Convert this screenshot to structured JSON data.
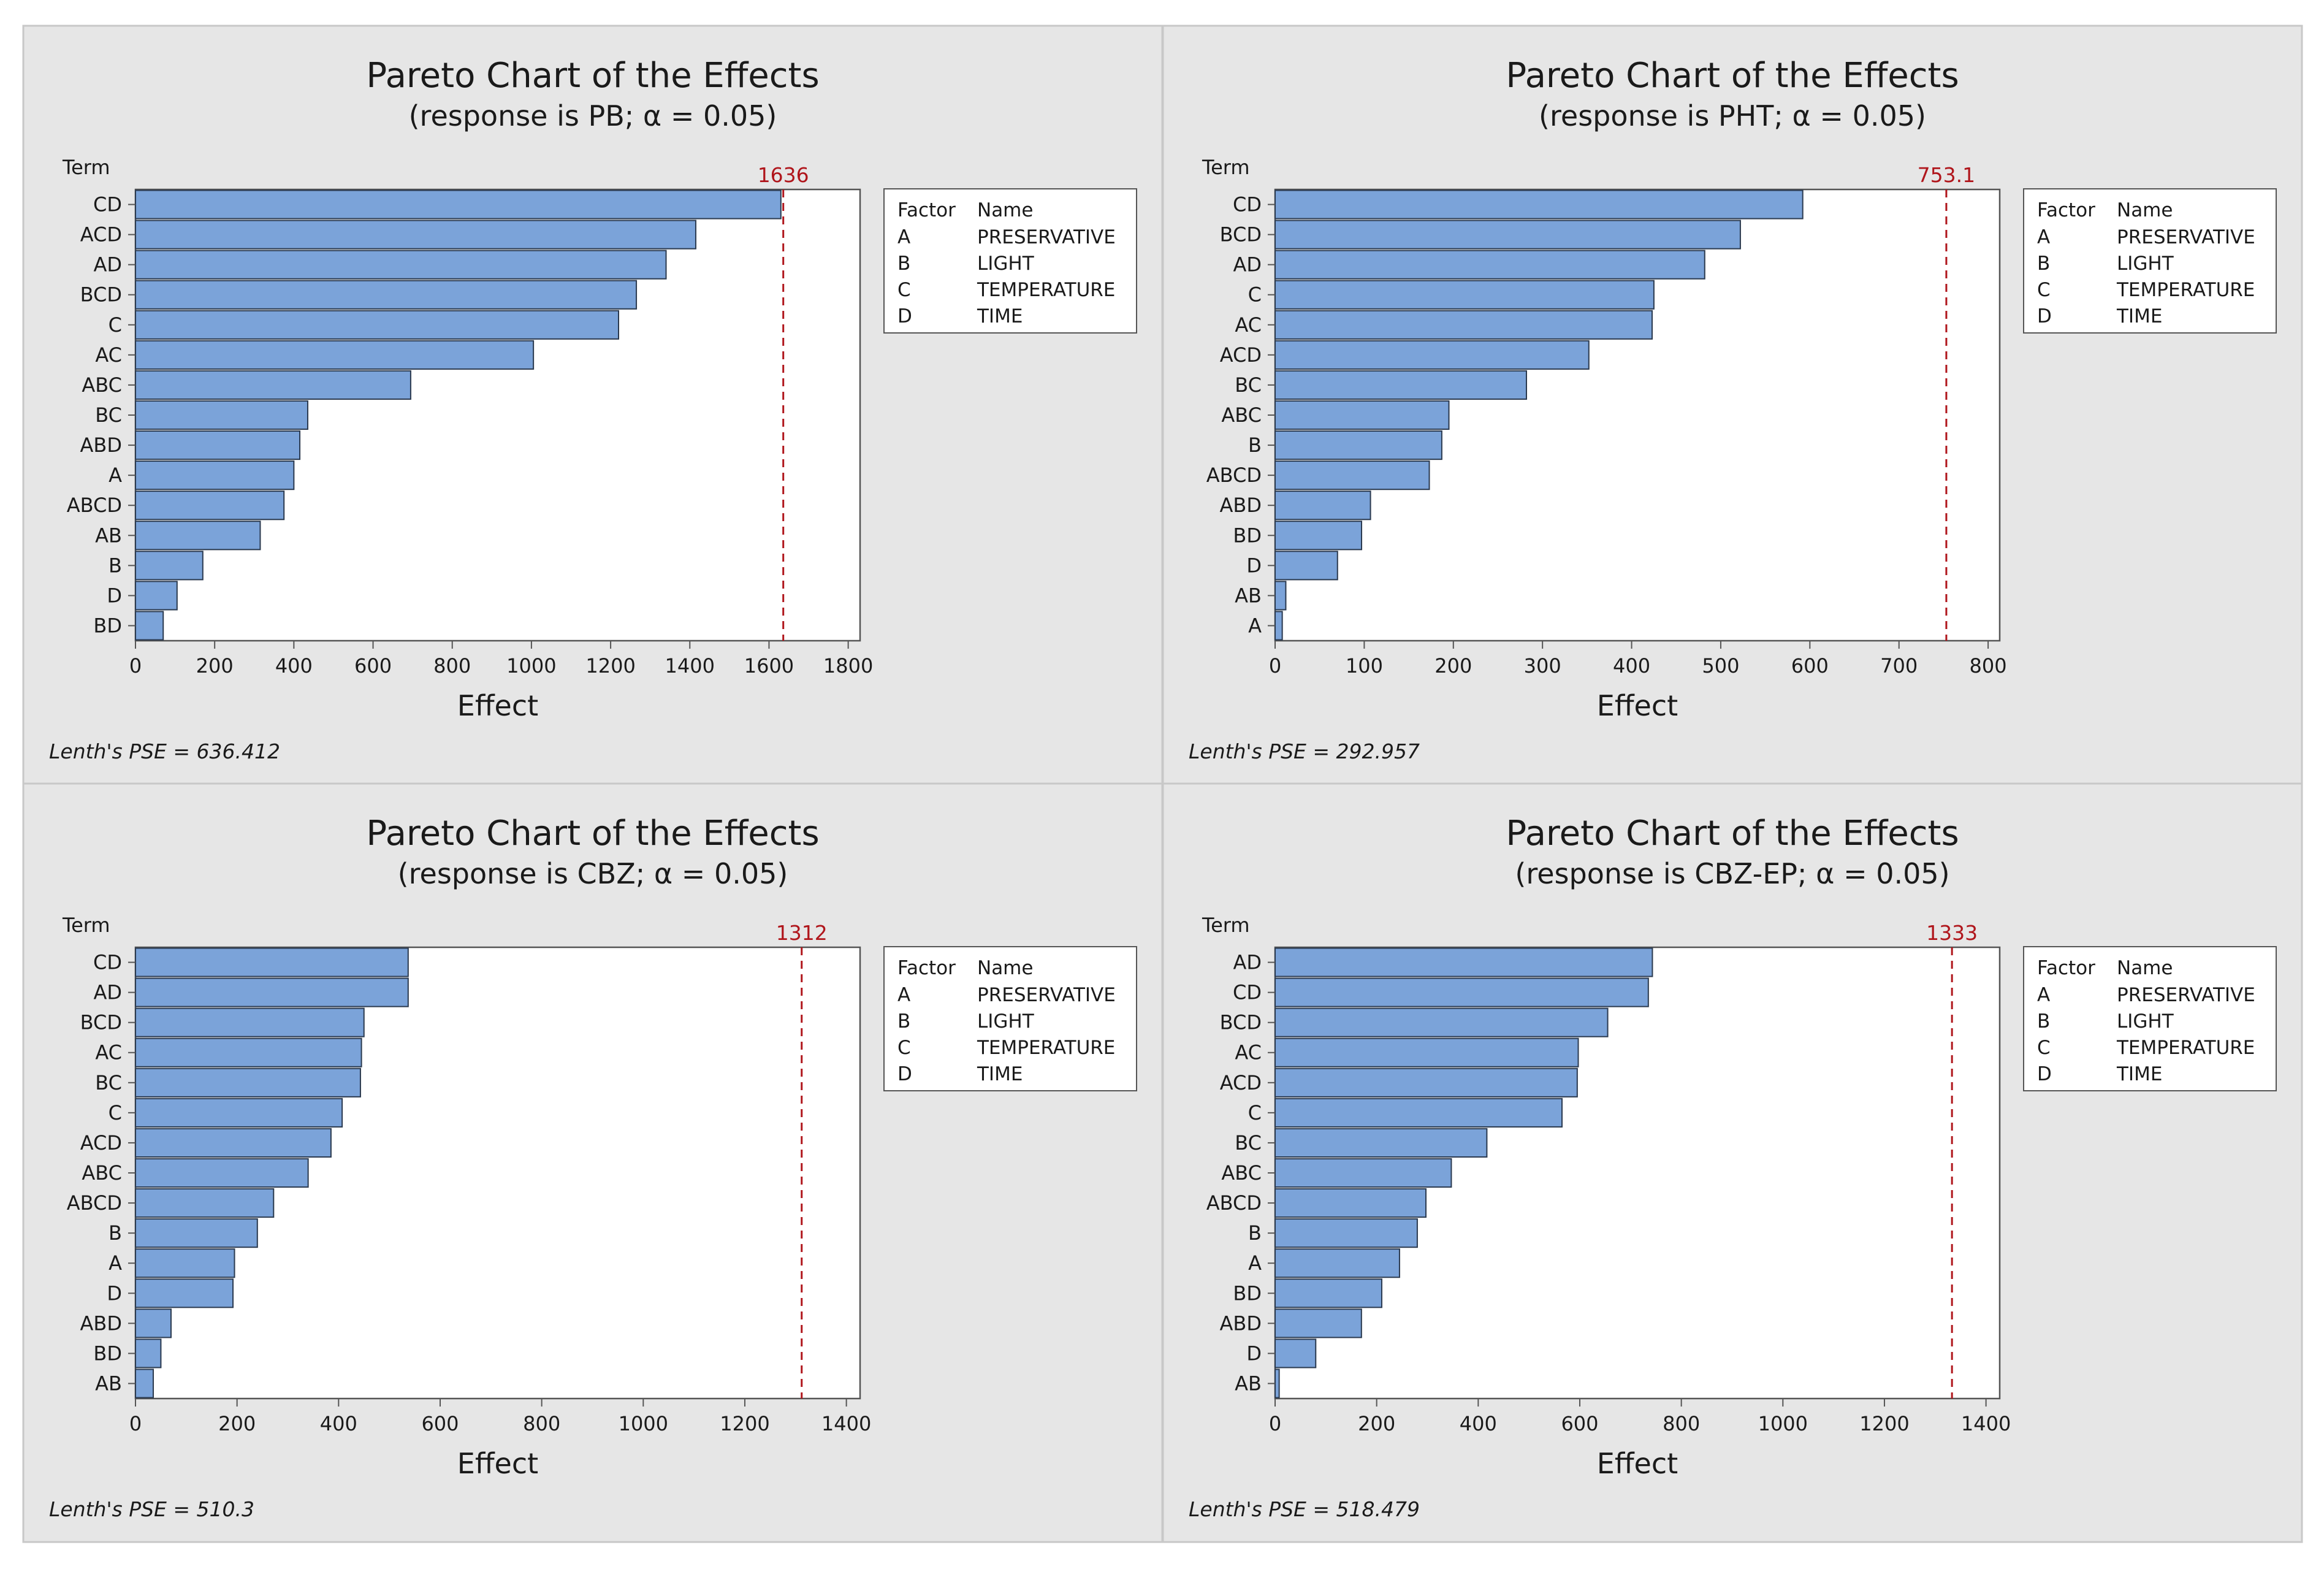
{
  "colors": {
    "background": "#ffffff",
    "panel_bg": "#e6e6e6",
    "panel_border": "#c8c8c8",
    "plot_bg": "#ffffff",
    "bar_fill": "#7ba3d9",
    "bar_stroke": "#2b3a4f",
    "reference_line": "#b0161c",
    "text": "#1a1a1a"
  },
  "chart_data": [
    {
      "type": "bar",
      "orientation": "horizontal",
      "title": "Pareto Chart of the Effects",
      "subtitle": "(response is PB; α = 0.05)",
      "term_label": "Term",
      "xlabel": "Effect",
      "categories": [
        "CD",
        "ACD",
        "AD",
        "BCD",
        "C",
        "AC",
        "ABC",
        "BC",
        "ABD",
        "A",
        "ABCD",
        "AB",
        "B",
        "D",
        "BD"
      ],
      "values": [
        1630,
        1415,
        1340,
        1265,
        1220,
        1005,
        695,
        435,
        415,
        400,
        375,
        315,
        170,
        105,
        70
      ],
      "xlim": [
        0,
        1830
      ],
      "xticks": [
        0,
        200,
        400,
        600,
        800,
        1000,
        1200,
        1400,
        1600,
        1800
      ],
      "reference": {
        "value": 1636,
        "label": "1636"
      },
      "legend": {
        "header": [
          "Factor",
          "Name"
        ],
        "rows": [
          [
            "A",
            "PRESERVATIVE"
          ],
          [
            "B",
            "LIGHT"
          ],
          [
            "C",
            "TEMPERATURE"
          ],
          [
            "D",
            "TIME"
          ]
        ]
      },
      "footnote": "Lenth's PSE = 636.412"
    },
    {
      "type": "bar",
      "orientation": "horizontal",
      "title": "Pareto Chart of the Effects",
      "subtitle": "(response is PHT; α = 0.05)",
      "term_label": "Term",
      "xlabel": "Effect",
      "categories": [
        "CD",
        "BCD",
        "AD",
        "C",
        "AC",
        "ACD",
        "BC",
        "ABC",
        "B",
        "ABCD",
        "ABD",
        "BD",
        "D",
        "AB",
        "A"
      ],
      "values": [
        592,
        522,
        482,
        425,
        423,
        352,
        282,
        195,
        187,
        173,
        107,
        97,
        70,
        12,
        8
      ],
      "xlim": [
        0,
        813
      ],
      "xticks": [
        0,
        100,
        200,
        300,
        400,
        500,
        600,
        700,
        800
      ],
      "reference": {
        "value": 753.1,
        "label": "753.1"
      },
      "legend": {
        "header": [
          "Factor",
          "Name"
        ],
        "rows": [
          [
            "A",
            "PRESERVATIVE"
          ],
          [
            "B",
            "LIGHT"
          ],
          [
            "C",
            "TEMPERATURE"
          ],
          [
            "D",
            "TIME"
          ]
        ]
      },
      "footnote": "Lenth's PSE = 292.957"
    },
    {
      "type": "bar",
      "orientation": "horizontal",
      "title": "Pareto Chart of the Effects",
      "subtitle": "(response is CBZ; α = 0.05)",
      "term_label": "Term",
      "xlabel": "Effect",
      "categories": [
        "CD",
        "AD",
        "BCD",
        "AC",
        "BC",
        "C",
        "ACD",
        "ABC",
        "ABCD",
        "B",
        "A",
        "D",
        "ABD",
        "BD",
        "AB"
      ],
      "values": [
        537,
        537,
        450,
        445,
        443,
        407,
        385,
        340,
        272,
        240,
        195,
        192,
        70,
        50,
        35
      ],
      "xlim": [
        0,
        1427
      ],
      "xticks": [
        0,
        200,
        400,
        600,
        800,
        1000,
        1200,
        1400
      ],
      "reference": {
        "value": 1312,
        "label": "1312"
      },
      "legend": {
        "header": [
          "Factor",
          "Name"
        ],
        "rows": [
          [
            "A",
            "PRESERVATIVE"
          ],
          [
            "B",
            "LIGHT"
          ],
          [
            "C",
            "TEMPERATURE"
          ],
          [
            "D",
            "TIME"
          ]
        ]
      },
      "footnote": "Lenth's PSE = 510.3"
    },
    {
      "type": "bar",
      "orientation": "horizontal",
      "title": "Pareto Chart of the Effects",
      "subtitle": "(response is CBZ-EP; α = 0.05)",
      "term_label": "Term",
      "xlabel": "Effect",
      "categories": [
        "AD",
        "CD",
        "BCD",
        "AC",
        "ACD",
        "C",
        "BC",
        "ABC",
        "ABCD",
        "B",
        "A",
        "BD",
        "ABD",
        "D",
        "AB"
      ],
      "values": [
        743,
        735,
        655,
        597,
        595,
        565,
        417,
        347,
        297,
        280,
        245,
        210,
        170,
        80,
        8
      ],
      "xlim": [
        0,
        1427
      ],
      "xticks": [
        0,
        200,
        400,
        600,
        800,
        1000,
        1200,
        1400
      ],
      "reference": {
        "value": 1333,
        "label": "1333"
      },
      "legend": {
        "header": [
          "Factor",
          "Name"
        ],
        "rows": [
          [
            "A",
            "PRESERVATIVE"
          ],
          [
            "B",
            "LIGHT"
          ],
          [
            "C",
            "TEMPERATURE"
          ],
          [
            "D",
            "TIME"
          ]
        ]
      },
      "footnote": "Lenth's PSE = 518.479"
    }
  ]
}
